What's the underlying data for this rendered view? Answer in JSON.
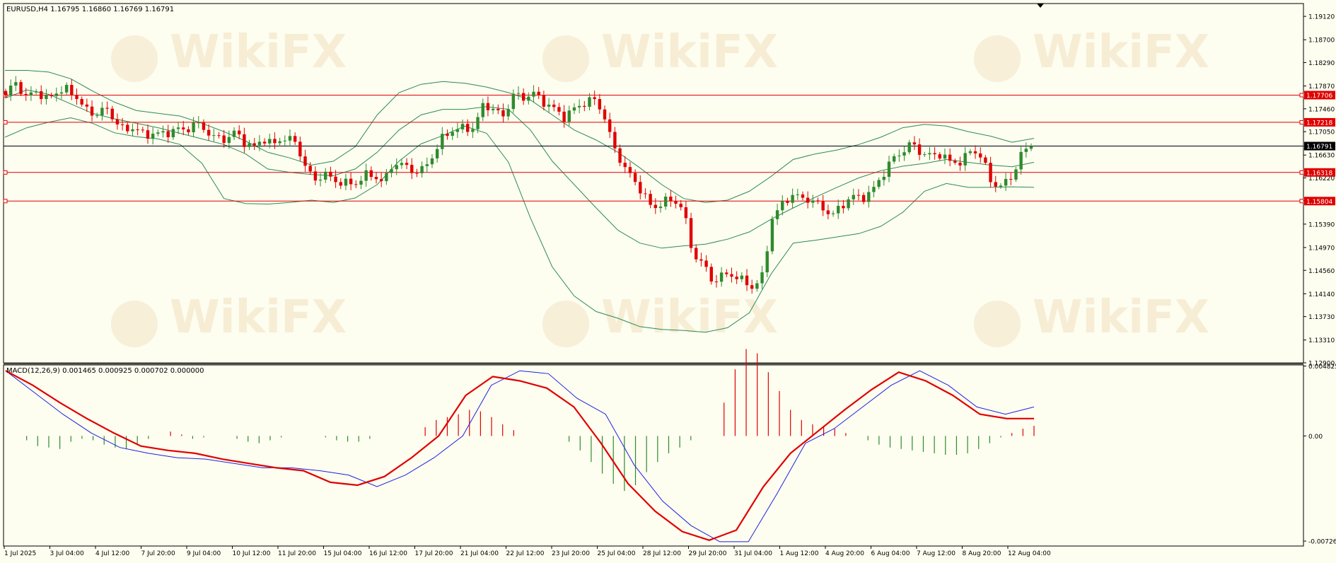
{
  "main_header": "EURUSD,H4  1.16795 1.16860 1.16769 1.16791",
  "macd_header": "MACD(12,26,9) 0.001465 0.000925 0.000702 0.000000",
  "colors": {
    "background": "#fdfdf0",
    "bull": "#2e8b2e",
    "bear": "#e00000",
    "bands": "#2e8b57",
    "macd_line": "#2020e0",
    "signal_line": "#e00000",
    "level_line": "#e00000",
    "current_line": "#000000",
    "watermark": "#f2e3c3"
  },
  "watermark_text": "WikiFX",
  "chart_data": [
    {
      "type": "candlestick",
      "symbol": "EURUSD",
      "timeframe": "H4",
      "ohlc_header": {
        "open": 1.16795,
        "high": 1.1686,
        "low": 1.16769,
        "close": 1.16791
      },
      "ylim": [
        1.129,
        1.1935
      ],
      "y_ticks": [
        "1.19120",
        "1.18700",
        "1.18290",
        "1.17870",
        "1.17460",
        "1.17050",
        "1.16630",
        "1.16220",
        "1.15810",
        "1.15390",
        "1.14970",
        "1.14560",
        "1.14140",
        "1.13730",
        "1.13310",
        "1.12900"
      ],
      "x_ticks": [
        "1 Jul 2025",
        "3 Jul 04:00",
        "4 Jul 12:00",
        "7 Jul 20:00",
        "9 Jul 04:00",
        "10 Jul 12:00",
        "11 Jul 20:00",
        "15 Jul 04:00",
        "16 Jul 12:00",
        "17 Jul 20:00",
        "21 Jul 04:00",
        "22 Jul 12:00",
        "23 Jul 20:00",
        "25 Jul 04:00",
        "28 Jul 12:00",
        "29 Jul 20:00",
        "31 Jul 04:00",
        "1 Aug 12:00",
        "4 Aug 20:00",
        "6 Aug 04:00",
        "7 Aug 12:00",
        "8 Aug 20:00",
        "12 Aug 04:00"
      ],
      "horizontal_levels": [
        {
          "value": 1.17706,
          "label": "1.17706"
        },
        {
          "value": 1.17218,
          "label": "1.17218"
        },
        {
          "value": 1.16318,
          "label": "1.16318"
        },
        {
          "value": 1.15804,
          "label": "1.15804"
        }
      ],
      "current_price": {
        "value": 1.16791,
        "label": "1.16791"
      },
      "close_path": [
        1.177,
        1.1795,
        1.1765,
        1.178,
        1.1762,
        1.1775,
        1.1782,
        1.177,
        1.1745,
        1.1735,
        1.1748,
        1.1725,
        1.1705,
        1.1715,
        1.1695,
        1.1705,
        1.1698,
        1.1712,
        1.1705,
        1.1722,
        1.1708,
        1.1695,
        1.169,
        1.1705,
        1.1685,
        1.1678,
        1.1692,
        1.1682,
        1.1695,
        1.1688,
        1.1648,
        1.1615,
        1.1632,
        1.1615,
        1.1615,
        1.1608,
        1.1628,
        1.1625,
        1.1615,
        1.165,
        1.1645,
        1.1632,
        1.1638,
        1.1665,
        1.1698,
        1.1708,
        1.1712,
        1.171,
        1.1755,
        1.1745,
        1.1732,
        1.1772,
        1.1765,
        1.1775,
        1.1758,
        1.1748,
        1.173,
        1.1745,
        1.1755,
        1.1765,
        1.174,
        1.168,
        1.1645,
        1.162,
        1.1595,
        1.1565,
        1.158,
        1.1582,
        1.157,
        1.1485,
        1.147,
        1.1435,
        1.1448,
        1.1448,
        1.1438,
        1.1425,
        1.1445,
        1.155,
        1.1575,
        1.1592,
        1.1585,
        1.1582,
        1.1568,
        1.1555,
        1.1572,
        1.159,
        1.1585,
        1.1598,
        1.1625,
        1.1655,
        1.1668,
        1.1685,
        1.1665,
        1.1662,
        1.1665,
        1.1648,
        1.1652,
        1.1672,
        1.1662,
        1.1612,
        1.1608,
        1.1622,
        1.1665,
        1.1679
      ],
      "bollinger_upper": [
        1.1815,
        1.1815,
        1.1812,
        1.18,
        1.1778,
        1.1758,
        1.1743,
        1.1738,
        1.1733,
        1.172,
        1.1705,
        1.1688,
        1.1668,
        1.1658,
        1.1645,
        1.1652,
        1.1678,
        1.1735,
        1.1775,
        1.179,
        1.1795,
        1.1792,
        1.1785,
        1.1775,
        1.1762,
        1.1735,
        1.1708,
        1.169,
        1.1668,
        1.164,
        1.161,
        1.1585,
        1.1578,
        1.1582,
        1.1598,
        1.1625,
        1.1655,
        1.1665,
        1.1672,
        1.1682,
        1.1695,
        1.1712,
        1.1718,
        1.1715,
        1.1705,
        1.1697,
        1.1686,
        1.1693
      ],
      "bollinger_middle": [
        1.1765,
        1.178,
        1.1772,
        1.1755,
        1.1738,
        1.1728,
        1.172,
        1.1712,
        1.1702,
        1.1692,
        1.1682,
        1.1665,
        1.1638,
        1.1632,
        1.1628,
        1.1626,
        1.1638,
        1.1668,
        1.1708,
        1.1735,
        1.1745,
        1.1745,
        1.175,
        1.1745,
        1.1708,
        1.1652,
        1.161,
        1.1568,
        1.1528,
        1.1505,
        1.1496,
        1.15,
        1.1503,
        1.1512,
        1.1525,
        1.1548,
        1.1568,
        1.1587,
        1.1605,
        1.1622,
        1.1635,
        1.1643,
        1.1648,
        1.1655,
        1.165,
        1.1645,
        1.1642,
        1.165
      ],
      "bollinger_lower": [
        1.1695,
        1.1712,
        1.1722,
        1.173,
        1.172,
        1.1703,
        1.1696,
        1.1692,
        1.1682,
        1.1648,
        1.1585,
        1.1576,
        1.1575,
        1.1578,
        1.1582,
        1.1578,
        1.1586,
        1.161,
        1.1652,
        1.1683,
        1.1698,
        1.1715,
        1.1702,
        1.165,
        1.155,
        1.1462,
        1.141,
        1.1382,
        1.137,
        1.1355,
        1.135,
        1.1348,
        1.1345,
        1.1353,
        1.138,
        1.145,
        1.1505,
        1.151,
        1.1516,
        1.1522,
        1.1535,
        1.156,
        1.1598,
        1.1612,
        1.1605,
        1.1605,
        1.1606,
        1.1605
      ]
    },
    {
      "type": "bar+line",
      "title": "MACD(12,26,9)",
      "values_header": {
        "macd": 0.001465,
        "signal": 0.000925,
        "histogram": 0.000702,
        "other": 0.0
      },
      "ylim": [
        -0.0076,
        0.0049
      ],
      "y_ticks": [
        "0.004825",
        "0.00",
        "-0.00726"
      ],
      "histogram": [
        0.0,
        -0.0003,
        -0.0007,
        -0.0008,
        -0.0009,
        -0.0004,
        -0.0002,
        -0.0003,
        -0.0006,
        -0.0008,
        -0.0009,
        -0.0006,
        -0.0002,
        0.0,
        0.0003,
        0.0001,
        -0.0002,
        -0.0001,
        0.0,
        0.0,
        -0.0002,
        -0.0004,
        -0.0005,
        -0.0003,
        -0.0001,
        0.0,
        0.0,
        0.0,
        -0.0001,
        -0.0003,
        -0.0004,
        -0.0004,
        -0.0002,
        0.0,
        0.0,
        0.0,
        0.0,
        0.0006,
        0.0011,
        0.0013,
        0.0015,
        0.0018,
        0.0017,
        0.0013,
        0.0008,
        0.0004,
        0.0,
        0.0,
        0.0,
        0.0,
        -0.0004,
        -0.001,
        -0.0018,
        -0.0026,
        -0.0033,
        -0.0038,
        -0.0034,
        -0.0025,
        -0.0018,
        -0.0012,
        -0.0008,
        -0.0003,
        0.0,
        0.0,
        0.0023,
        0.0046,
        0.006,
        0.0057,
        0.0044,
        0.0031,
        0.0018,
        0.0011,
        0.0008,
        0.0006,
        0.0005,
        0.0002,
        0.0,
        -0.0003,
        -0.0006,
        -0.0008,
        -0.0009,
        -0.001,
        -0.0011,
        -0.0012,
        -0.0013,
        -0.0013,
        -0.0012,
        -0.0009,
        -0.0005,
        -0.0001,
        0.0002,
        0.0005,
        0.0007
      ],
      "macd_line": [
        0.0045,
        0.003,
        0.0015,
        0.0002,
        -0.0008,
        -0.0012,
        -0.0015,
        -0.0016,
        -0.0019,
        -0.0022,
        -0.0022,
        -0.0024,
        -0.0027,
        -0.0035,
        -0.0027,
        -0.0015,
        0.0,
        0.0035,
        0.0045,
        0.0043,
        0.0026,
        0.0015,
        -0.002,
        -0.0045,
        -0.0062,
        -0.0073,
        -0.0073,
        -0.004,
        -0.0005,
        0.0005,
        0.002,
        0.0035,
        0.0045,
        0.0035,
        0.002,
        0.0015,
        0.002
      ],
      "signal_line": [
        0.0045,
        0.0035,
        0.0023,
        0.0012,
        0.0002,
        -0.0007,
        -0.001,
        -0.0012,
        -0.0016,
        -0.0019,
        -0.0022,
        -0.0024,
        -0.0032,
        -0.0034,
        -0.0028,
        -0.0015,
        0.0,
        0.0028,
        0.0041,
        0.0038,
        0.0033,
        0.002,
        -0.0005,
        -0.0033,
        -0.0052,
        -0.0066,
        -0.0072,
        -0.0065,
        -0.0035,
        -0.0012,
        0.0003,
        0.0018,
        0.0032,
        0.0044,
        0.0038,
        0.0028,
        0.0015,
        0.0012,
        0.0012
      ]
    }
  ]
}
